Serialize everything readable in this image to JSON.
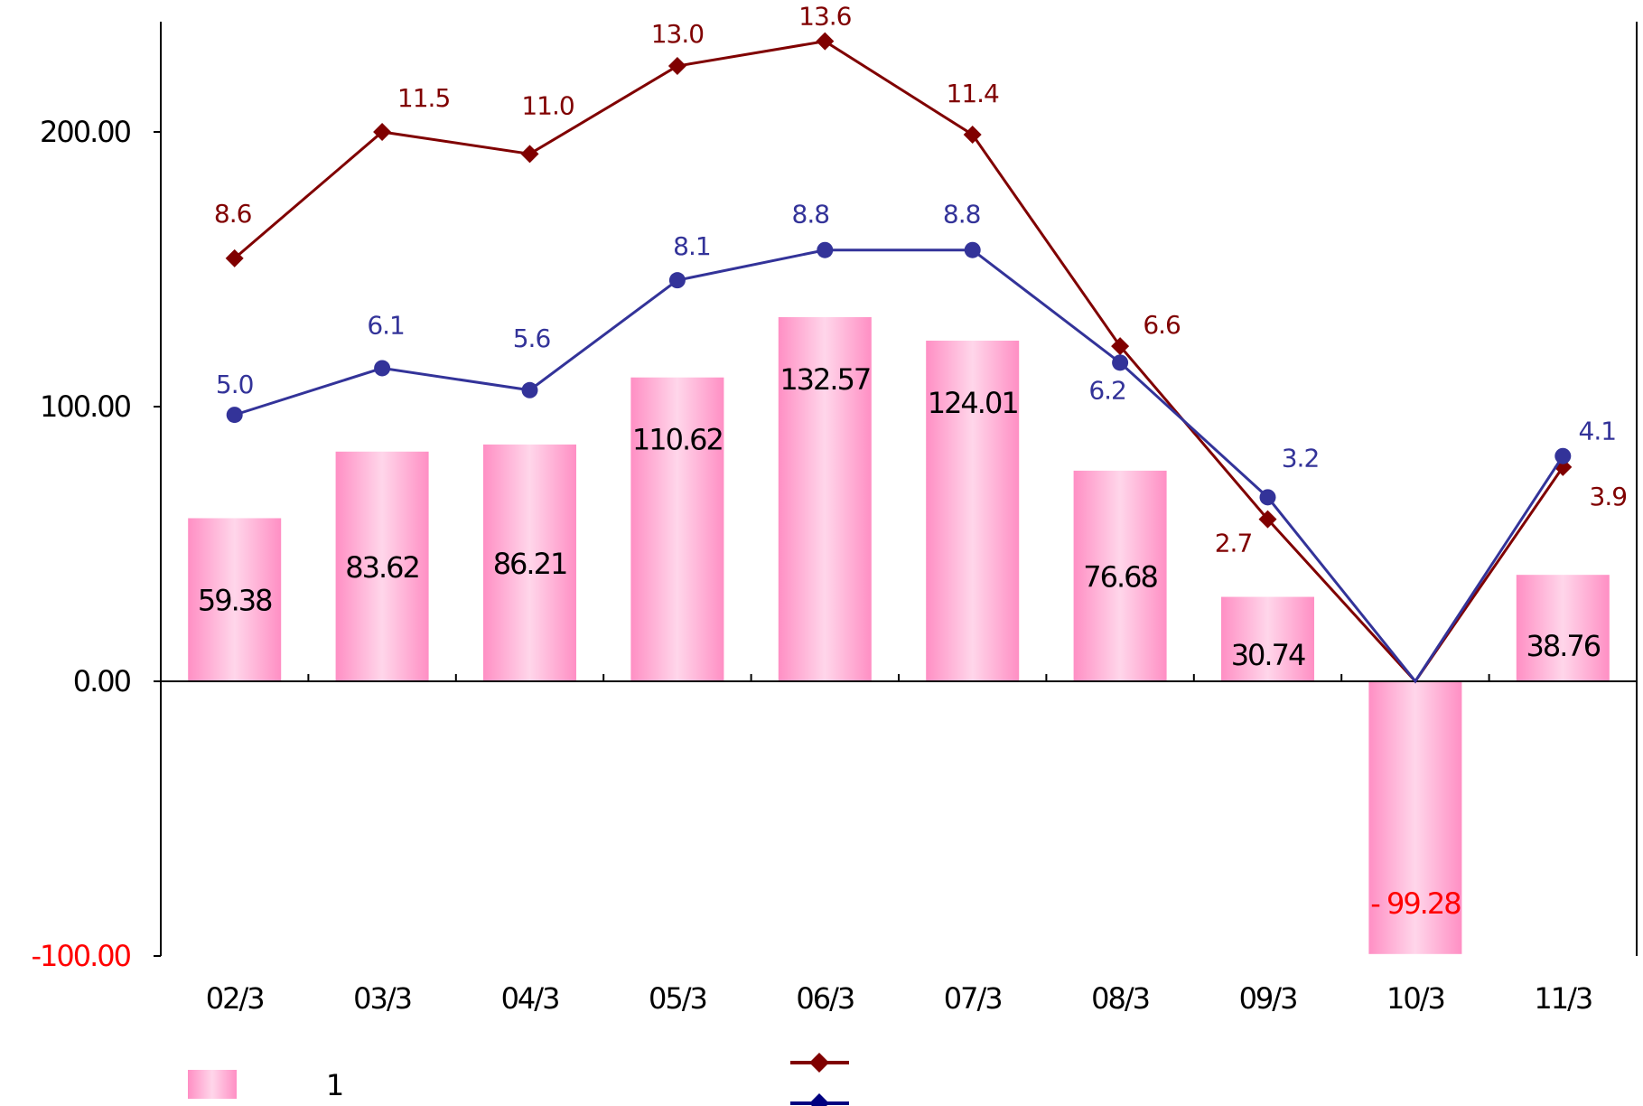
{
  "chart_data": {
    "type": "bar",
    "categories": [
      "02/3",
      "03/3",
      "04/3",
      "05/3",
      "06/3",
      "07/3",
      "08/3",
      "09/3",
      "10/3",
      "11/3"
    ],
    "ylim": [
      -100,
      200
    ],
    "y_ticks": [
      "200.00",
      "100.00",
      "0.00",
      "-100.00"
    ],
    "y_tick_values": [
      200,
      100,
      0,
      -100
    ],
    "grid": false,
    "legend_position": "bottom",
    "series": [
      {
        "type": "bar",
        "values": [
          59.38,
          83.62,
          86.21,
          110.62,
          132.57,
          124.01,
          76.68,
          30.74,
          -99.28,
          38.76
        ],
        "labels": [
          "59.38",
          "83.62",
          "86.21",
          "110.62",
          "132.57",
          "124.01",
          "76.68",
          "30.74",
          "- 99.28",
          "38.76"
        ],
        "color": "#ff99cc",
        "negative_label_color": "#ff0000"
      },
      {
        "type": "line",
        "marker": "diamond",
        "values": [
          154,
          200,
          192,
          224,
          233,
          199,
          122,
          59,
          0,
          78
        ],
        "labels": [
          "8.6",
          "11.5",
          "11.0",
          "13.0",
          "13.6",
          "11.4",
          "6.6",
          "2.7",
          "",
          "3.9"
        ],
        "color": "#800000"
      },
      {
        "type": "line",
        "marker": "circle",
        "values": [
          97,
          114,
          106,
          146,
          157,
          157,
          116,
          67,
          0,
          82
        ],
        "labels": [
          "5.0",
          "6.1",
          "5.6",
          "8.1",
          "8.8",
          "8.8",
          "6.2",
          "3.2",
          "",
          "4.1"
        ],
        "color": "#333399"
      }
    ],
    "legend": [
      {
        "marker": "bar",
        "label": "1",
        "color": "#ff99cc"
      },
      {
        "marker": "diamond",
        "label": "",
        "color": "#800000"
      },
      {
        "marker": "circle",
        "label": "",
        "color": "#000080"
      }
    ]
  }
}
